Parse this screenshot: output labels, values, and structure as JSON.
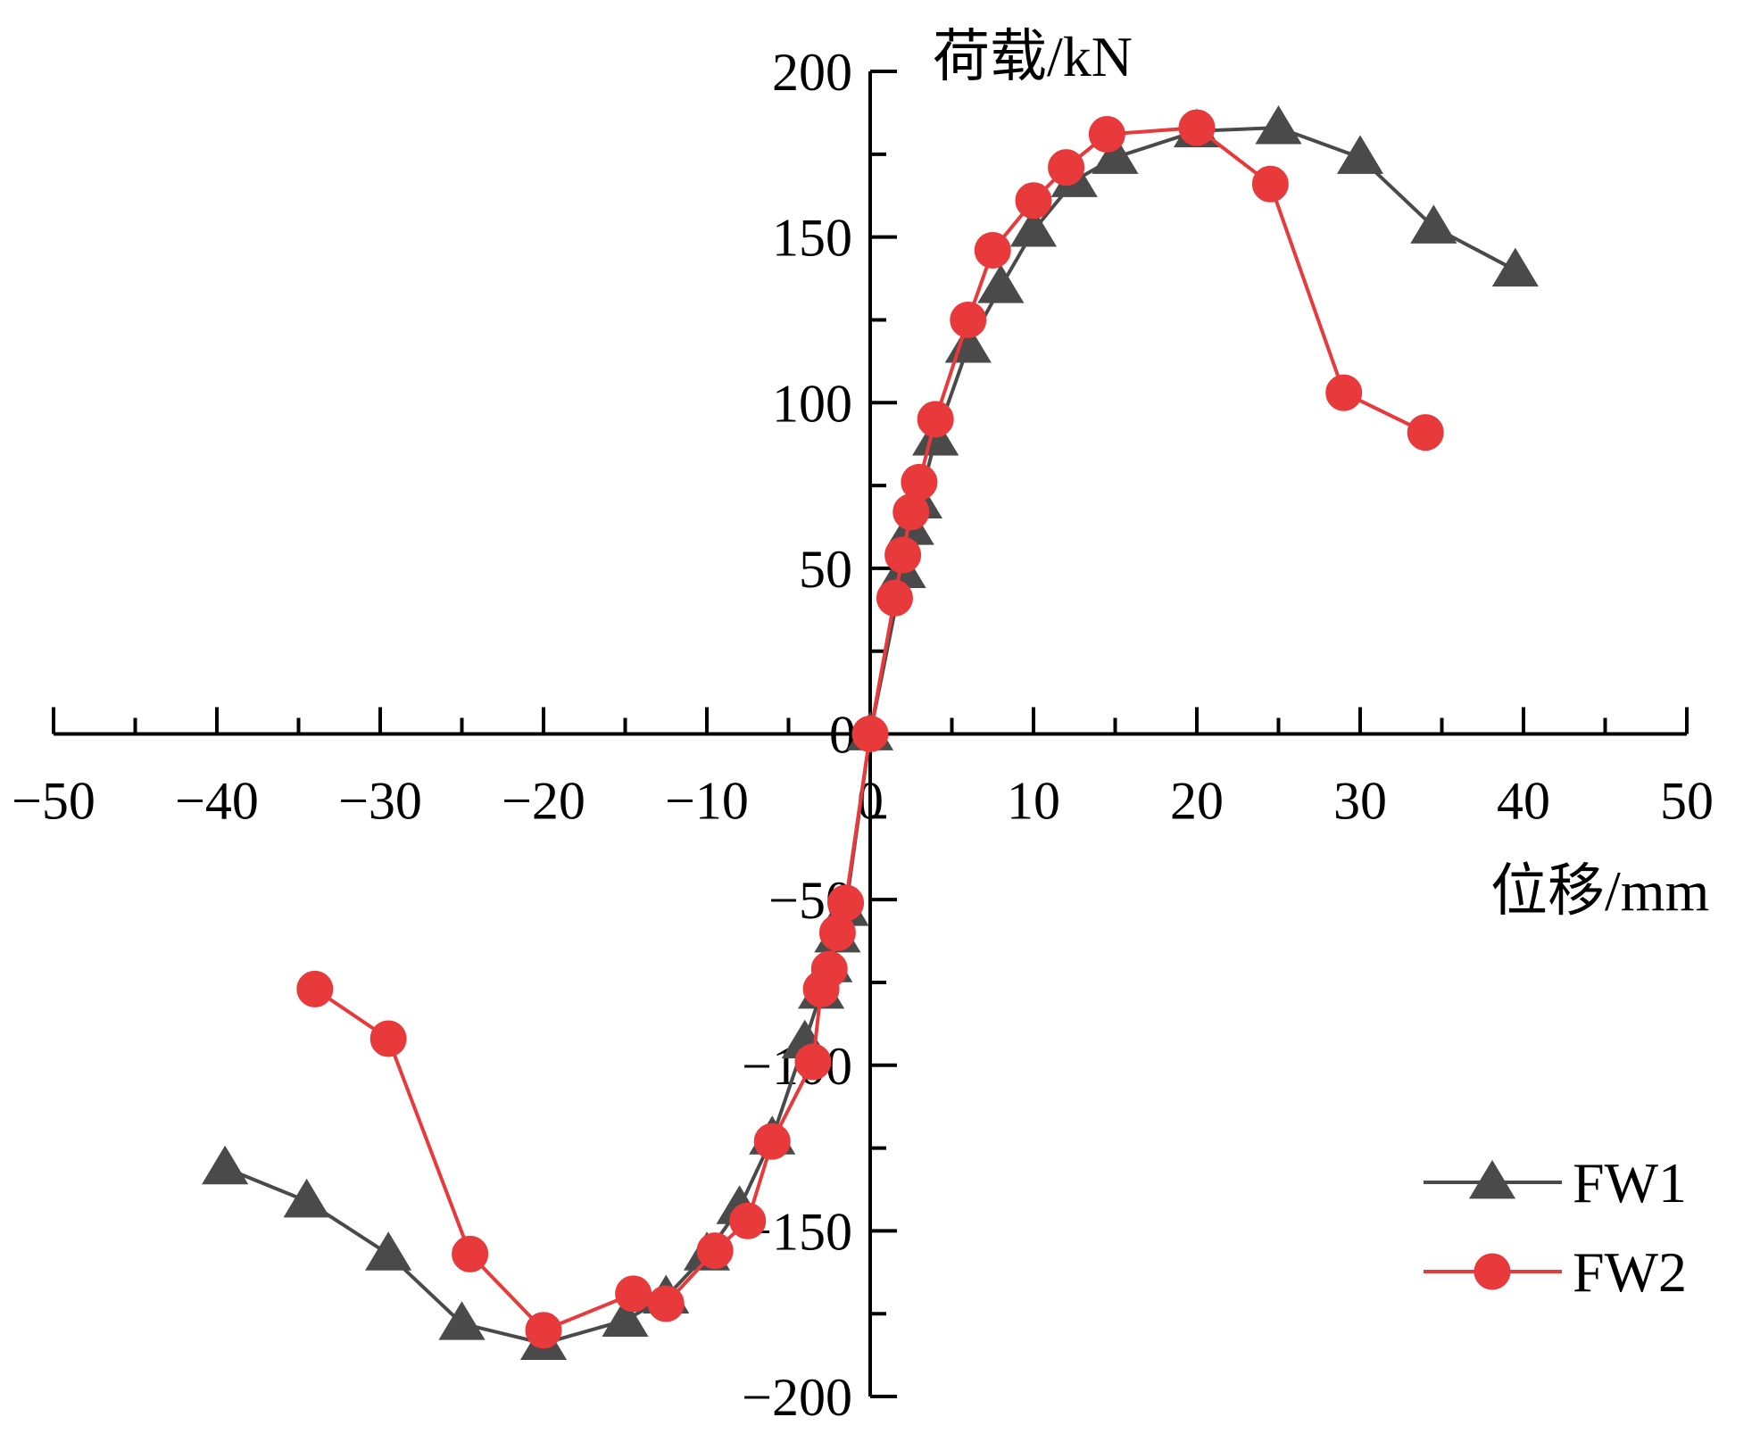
{
  "chart_data": {
    "type": "line",
    "xlabel": "位移/mm",
    "ylabel": "荷载/kN",
    "xlim": [
      -50,
      50
    ],
    "ylim": [
      -200,
      200
    ],
    "xticks": [
      -50,
      -40,
      -30,
      -20,
      -10,
      0,
      10,
      20,
      30,
      40,
      50
    ],
    "yticks": [
      -200,
      -150,
      -100,
      -50,
      0,
      50,
      100,
      150,
      200
    ],
    "xtick_labels": [
      "−50",
      "−40",
      "−30",
      "−20",
      "−10",
      "0",
      "10",
      "20",
      "30",
      "40",
      "50"
    ],
    "ytick_labels": [
      "−200",
      "−150",
      "−100",
      "−50",
      "0",
      "50",
      "100",
      "150",
      "200"
    ],
    "grid": false,
    "legend_position": "bottom-right",
    "series": [
      {
        "name": "FW1",
        "color": "#4a4a4a",
        "marker": "triangle",
        "points": [
          [
            -39.5,
            -131
          ],
          [
            -34.5,
            -141
          ],
          [
            -29.5,
            -157
          ],
          [
            -25,
            -178
          ],
          [
            -20,
            -184
          ],
          [
            -15,
            -177
          ],
          [
            -12.5,
            -170
          ],
          [
            -10,
            -157
          ],
          [
            -8,
            -143
          ],
          [
            -6,
            -122
          ],
          [
            -4,
            -93
          ],
          [
            -3,
            -78
          ],
          [
            -2.5,
            -70
          ],
          [
            -2,
            -61
          ],
          [
            -1.5,
            -53
          ],
          [
            0,
            0
          ],
          [
            2,
            49
          ],
          [
            2.5,
            62
          ],
          [
            3,
            70
          ],
          [
            4,
            89
          ],
          [
            6,
            117
          ],
          [
            8,
            135
          ],
          [
            10,
            152
          ],
          [
            12.5,
            167
          ],
          [
            15,
            174
          ],
          [
            20,
            182
          ],
          [
            25,
            183
          ],
          [
            30,
            174
          ],
          [
            34.5,
            153
          ],
          [
            39.5,
            140
          ]
        ]
      },
      {
        "name": "FW2",
        "color": "#e8393b",
        "marker": "circle",
        "points": [
          [
            -34,
            -77
          ],
          [
            -29.5,
            -92
          ],
          [
            -24.5,
            -157
          ],
          [
            -20,
            -180
          ],
          [
            -14.5,
            -169
          ],
          [
            -12.5,
            -172
          ],
          [
            -9.5,
            -156
          ],
          [
            -7.5,
            -147
          ],
          [
            -6,
            -123
          ],
          [
            -3.5,
            -99
          ],
          [
            -3,
            -77
          ],
          [
            -2.5,
            -71
          ],
          [
            -2,
            -60
          ],
          [
            -1.5,
            -51
          ],
          [
            0,
            0
          ],
          [
            1.5,
            41
          ],
          [
            2,
            54
          ],
          [
            2.5,
            67
          ],
          [
            3,
            76
          ],
          [
            4,
            95
          ],
          [
            6,
            125
          ],
          [
            7.5,
            146
          ],
          [
            10,
            161
          ],
          [
            12,
            171
          ],
          [
            14.5,
            181
          ],
          [
            20,
            183
          ],
          [
            24.5,
            166
          ],
          [
            29,
            103
          ],
          [
            34,
            91
          ]
        ]
      }
    ]
  }
}
